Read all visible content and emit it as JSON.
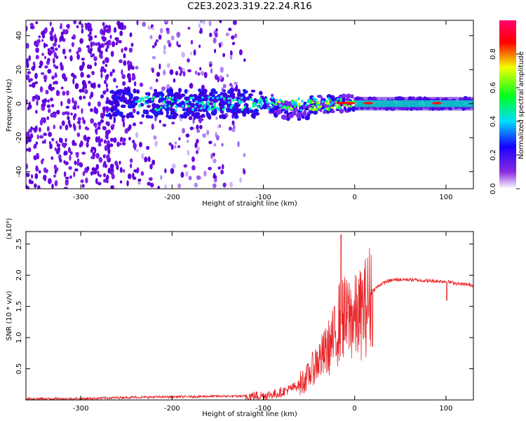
{
  "title": "C2E3.2023.319.22.24.R16",
  "chart_data": [
    {
      "type": "heatmap",
      "xlabel": "Height of straight line (km)",
      "ylabel": "Frequency (Hz)",
      "xlim": [
        -360,
        130
      ],
      "ylim": [
        -50,
        49
      ],
      "xticks": [
        -300,
        -200,
        -100,
        0,
        100
      ],
      "yticks": [
        -40,
        -20,
        0,
        20,
        40
      ],
      "colorbar": {
        "label": "Normalized spectral amplitude",
        "range": [
          0.0,
          1.0
        ],
        "ticks": [
          "0.0",
          "0.2",
          "0.4",
          "0.6",
          "0.8"
        ]
      },
      "features": {
        "noise_region_x": [
          -360,
          -120
        ],
        "signal_band_center_hz": 0,
        "red_peak_heights_km": [
          -15,
          -5,
          15,
          90
        ]
      }
    },
    {
      "type": "line",
      "xlabel": "Height of straight line (km)",
      "ylabel": "SNR (10 * v/v)",
      "yscale_label": "(x10⁴)",
      "xlim": [
        -360,
        130
      ],
      "ylim": [
        0,
        2.7
      ],
      "xticks": [
        -300,
        -200,
        -100,
        0,
        100
      ],
      "yticks": [
        0.5,
        1.0,
        1.5,
        2.0,
        2.5
      ],
      "series": [
        {
          "color": "#e8262a",
          "x": [
            -360,
            -300,
            -250,
            -200,
            -150,
            -120,
            -100,
            -85,
            -70,
            -60,
            -50,
            -42,
            -35,
            -28,
            -22,
            -17,
            -13,
            -10,
            -5,
            0,
            5,
            10,
            14,
            18,
            22,
            28,
            35,
            45,
            60,
            80,
            100,
            115,
            130
          ],
          "y": [
            0.02,
            0.02,
            0.04,
            0.05,
            0.06,
            0.06,
            0.07,
            0.1,
            0.18,
            0.25,
            0.4,
            0.6,
            0.7,
            0.85,
            1.0,
            1.25,
            1.4,
            1.25,
            1.35,
            1.3,
            1.35,
            1.45,
            1.55,
            1.7,
            1.78,
            1.85,
            1.9,
            1.93,
            1.93,
            1.91,
            1.9,
            1.86,
            1.84
          ]
        }
      ]
    }
  ]
}
